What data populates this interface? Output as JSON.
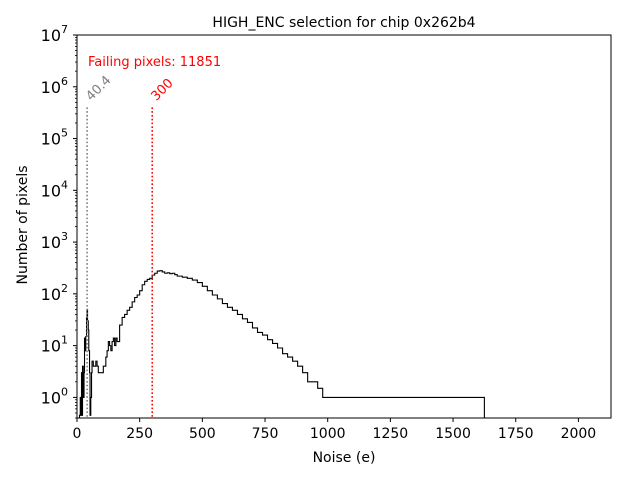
{
  "chart_data": {
    "type": "step",
    "title": "HIGH_ENC selection for chip 0x262b4",
    "xlabel": "Noise (e)",
    "ylabel": "Number of pixels",
    "xlim": [
      0,
      2130
    ],
    "ylim": [
      0.4,
      10000000
    ],
    "yscale": "log",
    "xticks": [
      0,
      250,
      500,
      750,
      1000,
      1250,
      1500,
      1750,
      2000
    ],
    "yticks": [
      {
        "base": "10",
        "exp": "0",
        "value": 1
      },
      {
        "base": "10",
        "exp": "1",
        "value": 10
      },
      {
        "base": "10",
        "exp": "2",
        "value": 100
      },
      {
        "base": "10",
        "exp": "3",
        "value": 1000
      },
      {
        "base": "10",
        "exp": "4",
        "value": 10000
      },
      {
        "base": "10",
        "exp": "5",
        "value": 100000
      },
      {
        "base": "10",
        "exp": "6",
        "value": 1000000
      },
      {
        "base": "10",
        "exp": "7",
        "value": 10000000
      }
    ],
    "annotation": {
      "text": "Failing pixels: 11851",
      "color": "#ff0000"
    },
    "vlines": [
      {
        "x": 40.4,
        "label": "40.4",
        "color": "#808080",
        "top": 400000
      },
      {
        "x": 300,
        "label": "300",
        "color": "#ff0000",
        "top": 400000
      }
    ],
    "histogram": {
      "bin_width": 5,
      "points": [
        [
          10,
          0.45
        ],
        [
          13,
          1
        ],
        [
          15,
          0.45
        ],
        [
          18,
          3
        ],
        [
          20,
          0.45
        ],
        [
          22,
          4
        ],
        [
          25,
          1
        ],
        [
          28,
          3
        ],
        [
          30,
          14
        ],
        [
          32,
          8
        ],
        [
          35,
          15
        ],
        [
          38,
          35
        ],
        [
          40,
          50
        ],
        [
          42,
          30
        ],
        [
          45,
          20
        ],
        [
          47,
          8
        ],
        [
          50,
          3
        ],
        [
          52,
          0.45
        ],
        [
          55,
          1
        ],
        [
          58,
          3
        ],
        [
          60,
          5
        ],
        [
          65,
          4
        ],
        [
          70,
          4
        ],
        [
          75,
          5
        ],
        [
          80,
          4
        ],
        [
          85,
          3
        ],
        [
          90,
          3
        ],
        [
          95,
          3
        ],
        [
          100,
          3
        ],
        [
          105,
          4
        ],
        [
          110,
          4
        ],
        [
          115,
          6
        ],
        [
          120,
          8
        ],
        [
          125,
          12
        ],
        [
          130,
          10
        ],
        [
          135,
          8
        ],
        [
          140,
          12
        ],
        [
          145,
          14
        ],
        [
          150,
          10
        ],
        [
          155,
          14
        ],
        [
          160,
          12
        ],
        [
          170,
          25
        ],
        [
          180,
          35
        ],
        [
          190,
          40
        ],
        [
          200,
          48
        ],
        [
          210,
          55
        ],
        [
          220,
          70
        ],
        [
          230,
          85
        ],
        [
          240,
          95
        ],
        [
          250,
          115
        ],
        [
          260,
          150
        ],
        [
          270,
          175
        ],
        [
          280,
          190
        ],
        [
          290,
          200
        ],
        [
          300,
          230
        ],
        [
          310,
          250
        ],
        [
          320,
          275
        ],
        [
          330,
          280
        ],
        [
          340,
          265
        ],
        [
          350,
          250
        ],
        [
          360,
          255
        ],
        [
          370,
          245
        ],
        [
          380,
          250
        ],
        [
          390,
          235
        ],
        [
          400,
          220
        ],
        [
          420,
          210
        ],
        [
          440,
          200
        ],
        [
          460,
          185
        ],
        [
          480,
          165
        ],
        [
          500,
          140
        ],
        [
          520,
          115
        ],
        [
          540,
          95
        ],
        [
          560,
          80
        ],
        [
          580,
          65
        ],
        [
          600,
          55
        ],
        [
          620,
          48
        ],
        [
          640,
          40
        ],
        [
          660,
          33
        ],
        [
          680,
          28
        ],
        [
          700,
          22
        ],
        [
          720,
          18
        ],
        [
          740,
          16
        ],
        [
          760,
          13
        ],
        [
          780,
          11
        ],
        [
          800,
          9
        ],
        [
          820,
          7
        ],
        [
          840,
          6
        ],
        [
          860,
          5
        ],
        [
          880,
          4
        ],
        [
          900,
          3
        ],
        [
          920,
          2
        ],
        [
          940,
          2
        ],
        [
          960,
          1.5
        ],
        [
          980,
          1
        ],
        [
          1000,
          1
        ],
        [
          1020,
          1
        ],
        [
          1040,
          1
        ],
        [
          1060,
          1
        ],
        [
          1080,
          1
        ],
        [
          1100,
          1
        ],
        [
          1120,
          1
        ],
        [
          1140,
          1
        ],
        [
          1160,
          1
        ],
        [
          1180,
          1
        ],
        [
          1200,
          1
        ],
        [
          1220,
          1
        ],
        [
          1240,
          1
        ],
        [
          1260,
          1
        ],
        [
          1280,
          1
        ],
        [
          1300,
          1
        ],
        [
          1320,
          1
        ],
        [
          1340,
          1
        ],
        [
          1360,
          1
        ],
        [
          1380,
          1
        ],
        [
          1400,
          1
        ],
        [
          1420,
          1
        ],
        [
          1440,
          1
        ],
        [
          1460,
          1
        ],
        [
          1480,
          1
        ],
        [
          1500,
          1
        ],
        [
          1520,
          1
        ],
        [
          1540,
          1
        ],
        [
          1560,
          1
        ],
        [
          1580,
          1
        ],
        [
          1600,
          1
        ],
        [
          1620,
          1
        ]
      ]
    }
  }
}
